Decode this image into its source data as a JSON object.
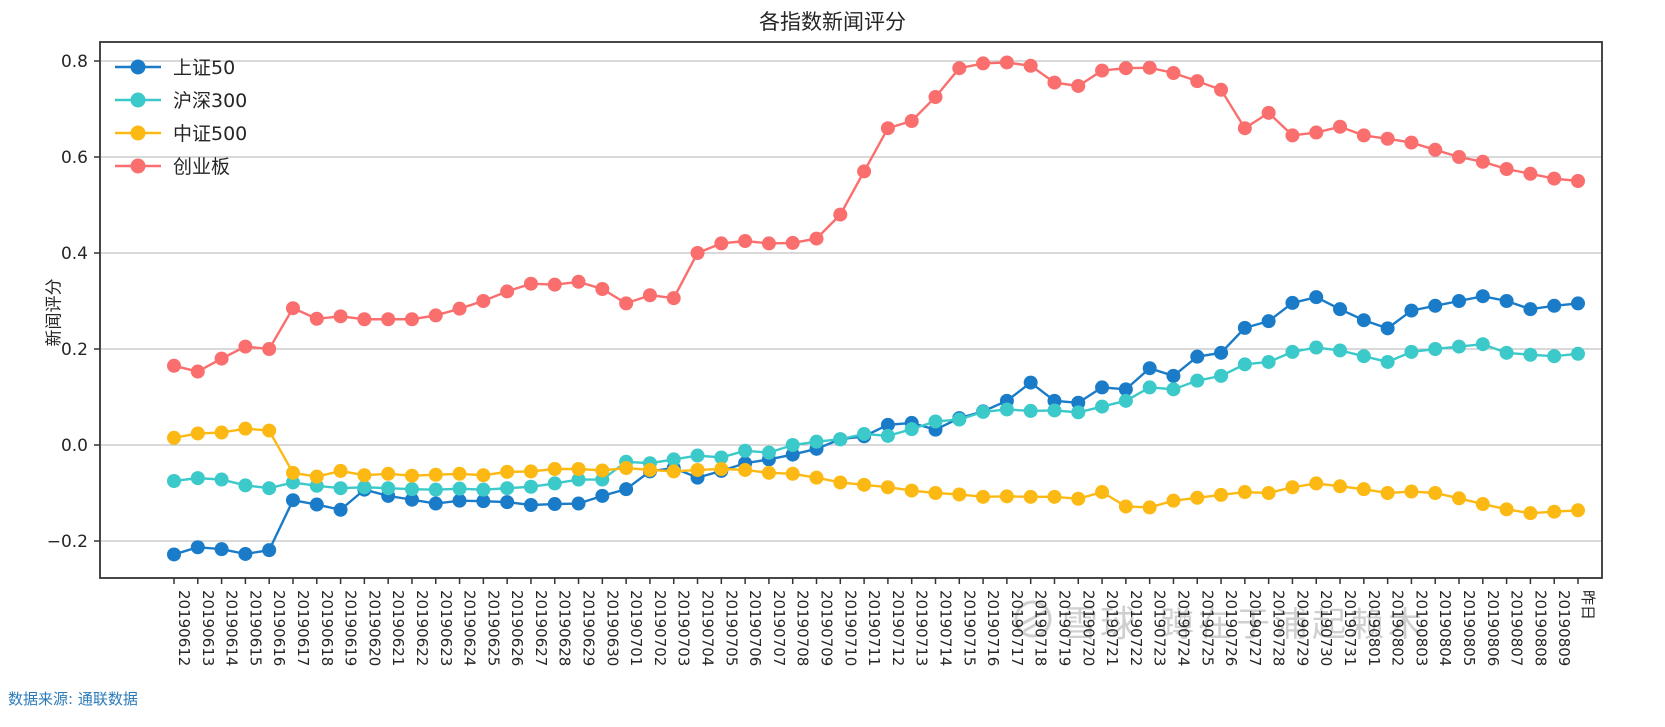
{
  "title": "各指数新闻评分",
  "ylabel": "新闻评分",
  "source_note": "数据来源: 通联数据",
  "watermark": {
    "brand": "雪球",
    "nickname": "蹲在于浦起赖木"
  },
  "chart_data": {
    "type": "line",
    "title": "各指数新闻评分",
    "xlabel": "",
    "ylabel": "新闻评分",
    "ylim": [
      -0.28,
      0.84
    ],
    "yticks": [
      0.8,
      0.6,
      0.4,
      0.2,
      0.0,
      -0.2
    ],
    "grid": true,
    "legend_position": "upper-left",
    "marker": "circle",
    "categories": [
      "20190612",
      "20190613",
      "20190614",
      "20190615",
      "20190616",
      "20190617",
      "20190618",
      "20190619",
      "20190620",
      "20190621",
      "20190622",
      "20190623",
      "20190624",
      "20190625",
      "20190626",
      "20190627",
      "20190628",
      "20190629",
      "20190630",
      "20190701",
      "20190702",
      "20190703",
      "20190704",
      "20190705",
      "20190706",
      "20190707",
      "20190708",
      "20190709",
      "20190710",
      "20190711",
      "20190712",
      "20190713",
      "20190714",
      "20190715",
      "20190716",
      "20190717",
      "20190718",
      "20190719",
      "20190720",
      "20190721",
      "20190722",
      "20190723",
      "20190724",
      "20190725",
      "20190726",
      "20190727",
      "20190728",
      "20190729",
      "20190730",
      "20190731",
      "20190801",
      "20190802",
      "20190803",
      "20190804",
      "20190805",
      "20190806",
      "20190807",
      "20190808",
      "20190809",
      "昨日"
    ],
    "series": [
      {
        "name": "上证50",
        "color": "#1a7cc8",
        "values": [
          -0.228,
          -0.213,
          -0.217,
          -0.227,
          -0.219,
          -0.115,
          -0.124,
          -0.135,
          -0.093,
          -0.106,
          -0.114,
          -0.122,
          -0.116,
          -0.117,
          -0.119,
          -0.125,
          -0.123,
          -0.122,
          -0.106,
          -0.092,
          -0.055,
          -0.048,
          -0.068,
          -0.054,
          -0.038,
          -0.03,
          -0.02,
          -0.008,
          0.012,
          0.018,
          0.042,
          0.046,
          0.032,
          0.056,
          0.07,
          0.092,
          0.13,
          0.092,
          0.088,
          0.12,
          0.116,
          0.16,
          0.144,
          0.184,
          0.192,
          0.244,
          0.258,
          0.296,
          0.308,
          0.283,
          0.26,
          0.243,
          0.28,
          0.29,
          0.3,
          0.31,
          0.3,
          0.283,
          0.29,
          0.295
        ]
      },
      {
        "name": "沪深300",
        "color": "#3bc9c9",
        "values": [
          -0.075,
          -0.069,
          -0.072,
          -0.084,
          -0.09,
          -0.078,
          -0.085,
          -0.09,
          -0.088,
          -0.09,
          -0.092,
          -0.093,
          -0.091,
          -0.093,
          -0.09,
          -0.087,
          -0.08,
          -0.072,
          -0.072,
          -0.035,
          -0.038,
          -0.03,
          -0.022,
          -0.026,
          -0.012,
          -0.016,
          0.0,
          0.007,
          0.012,
          0.023,
          0.019,
          0.033,
          0.049,
          0.053,
          0.069,
          0.074,
          0.071,
          0.072,
          0.068,
          0.08,
          0.092,
          0.12,
          0.116,
          0.134,
          0.144,
          0.168,
          0.173,
          0.194,
          0.203,
          0.197,
          0.185,
          0.173,
          0.194,
          0.2,
          0.205,
          0.21,
          0.192,
          0.188,
          0.185,
          0.19
        ]
      },
      {
        "name": "中证500",
        "color": "#fdb913",
        "values": [
          0.015,
          0.024,
          0.026,
          0.034,
          0.03,
          -0.058,
          -0.066,
          -0.054,
          -0.063,
          -0.06,
          -0.064,
          -0.062,
          -0.06,
          -0.063,
          -0.056,
          -0.055,
          -0.05,
          -0.05,
          -0.053,
          -0.048,
          -0.052,
          -0.055,
          -0.052,
          -0.05,
          -0.052,
          -0.058,
          -0.06,
          -0.068,
          -0.078,
          -0.083,
          -0.088,
          -0.095,
          -0.1,
          -0.103,
          -0.108,
          -0.107,
          -0.108,
          -0.108,
          -0.112,
          -0.098,
          -0.128,
          -0.13,
          -0.116,
          -0.11,
          -0.104,
          -0.098,
          -0.1,
          -0.088,
          -0.08,
          -0.086,
          -0.092,
          -0.1,
          -0.097,
          -0.1,
          -0.111,
          -0.123,
          -0.134,
          -0.142,
          -0.139,
          -0.136
        ]
      },
      {
        "name": "创业板",
        "color": "#fa6e6e",
        "values": [
          0.165,
          0.153,
          0.18,
          0.205,
          0.2,
          0.285,
          0.263,
          0.268,
          0.262,
          0.262,
          0.262,
          0.27,
          0.284,
          0.3,
          0.32,
          0.336,
          0.334,
          0.34,
          0.325,
          0.295,
          0.312,
          0.306,
          0.4,
          0.42,
          0.425,
          0.42,
          0.421,
          0.43,
          0.48,
          0.57,
          0.66,
          0.675,
          0.725,
          0.785,
          0.795,
          0.797,
          0.79,
          0.755,
          0.748,
          0.78,
          0.785,
          0.786,
          0.775,
          0.758,
          0.74,
          0.66,
          0.692,
          0.645,
          0.651,
          0.663,
          0.645,
          0.638,
          0.63,
          0.615,
          0.6,
          0.59,
          0.575,
          0.565,
          0.555,
          0.55
        ]
      }
    ]
  }
}
